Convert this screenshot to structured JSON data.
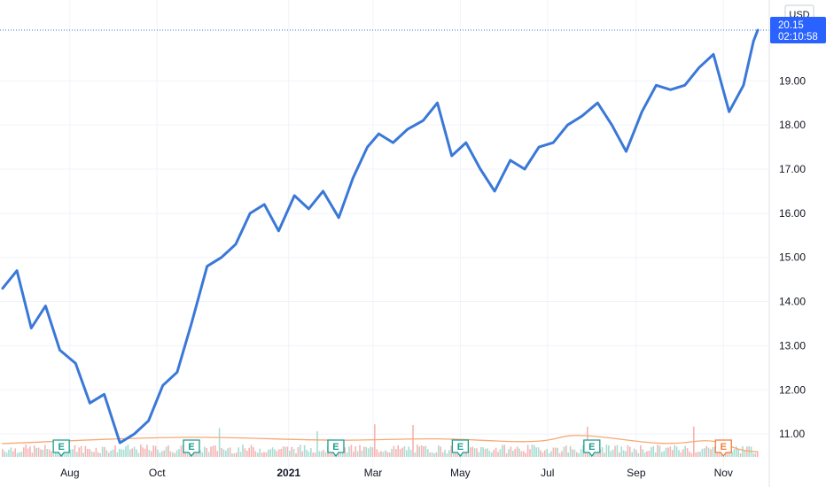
{
  "chart_data": {
    "type": "line",
    "currency": "USD",
    "price_tag": {
      "value": "20.15",
      "countdown": "02:10:58"
    },
    "ylim": [
      10.2,
      20.35
    ],
    "y_ticks": [
      "11.00",
      "12.00",
      "13.00",
      "14.00",
      "15.00",
      "16.00",
      "17.00",
      "18.00",
      "19.00"
    ],
    "x_ticks": [
      {
        "label": "Aug",
        "bold": false
      },
      {
        "label": "Oct",
        "bold": false
      },
      {
        "label": "2021",
        "bold": true
      },
      {
        "label": "Mar",
        "bold": false
      },
      {
        "label": "May",
        "bold": false
      },
      {
        "label": "Jul",
        "bold": false
      },
      {
        "label": "Sep",
        "bold": false
      },
      {
        "label": "Nov",
        "bold": false
      }
    ],
    "earnings_markers": [
      {
        "label": "E",
        "status": "reported"
      },
      {
        "label": "E",
        "status": "reported"
      },
      {
        "label": "E",
        "status": "reported"
      },
      {
        "label": "E",
        "status": "reported"
      },
      {
        "label": "E",
        "status": "reported"
      },
      {
        "label": "E",
        "status": "upcoming"
      }
    ],
    "series": [
      {
        "x": [
          "2020-06-15",
          "2020-06-25",
          "2020-07-05",
          "2020-07-15",
          "2020-07-25",
          "2020-08-05",
          "2020-08-15",
          "2020-08-25",
          "2020-09-05",
          "2020-09-15",
          "2020-09-25",
          "2020-10-05",
          "2020-10-15",
          "2020-10-25",
          "2020-11-05",
          "2020-11-15",
          "2020-11-25",
          "2020-12-05",
          "2020-12-15",
          "2020-12-25",
          "2021-01-05",
          "2021-01-15",
          "2021-01-25",
          "2021-02-05",
          "2021-02-15",
          "2021-02-25",
          "2021-03-05",
          "2021-03-15",
          "2021-03-25",
          "2021-04-05",
          "2021-04-15",
          "2021-04-25",
          "2021-05-05",
          "2021-05-15",
          "2021-05-25",
          "2021-06-05",
          "2021-06-15",
          "2021-06-25",
          "2021-07-05",
          "2021-07-15",
          "2021-07-25",
          "2021-08-05",
          "2021-08-15",
          "2021-08-25",
          "2021-09-05",
          "2021-09-15",
          "2021-09-25",
          "2021-10-05",
          "2021-10-15",
          "2021-10-25",
          "2021-11-05",
          "2021-11-15",
          "2021-11-22",
          "2021-11-25"
        ],
        "values": [
          14.3,
          14.7,
          13.4,
          13.9,
          12.9,
          12.6,
          11.7,
          11.9,
          10.8,
          11.0,
          11.3,
          12.1,
          12.4,
          13.5,
          14.8,
          15.0,
          15.3,
          16.0,
          16.2,
          15.6,
          16.4,
          16.1,
          16.5,
          15.9,
          16.8,
          17.5,
          17.8,
          17.6,
          17.9,
          18.1,
          18.5,
          17.3,
          17.6,
          17.0,
          16.5,
          17.2,
          17.0,
          17.5,
          17.6,
          18.0,
          18.2,
          18.5,
          18.0,
          17.4,
          18.3,
          18.9,
          18.8,
          18.9,
          19.3,
          19.6,
          18.3,
          18.9,
          19.9,
          20.15
        ],
        "volume_relative": "bars, small",
        "ma_line": "orange"
      }
    ]
  }
}
